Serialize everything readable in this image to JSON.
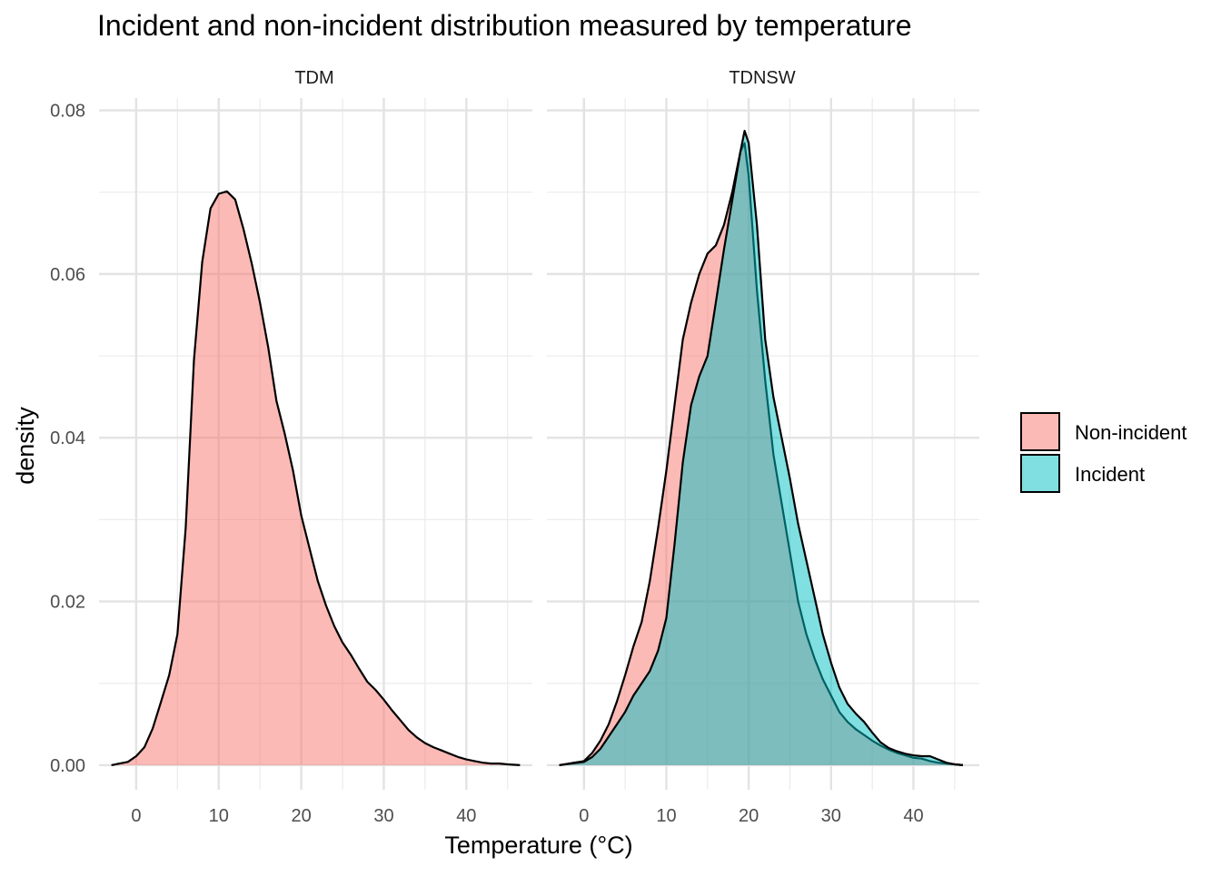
{
  "chart_data": {
    "type": "area",
    "title": "Incident and non-incident distribution measured by temperature",
    "xlabel": "Temperature (°C)",
    "ylabel": "density",
    "xlim": [
      -4.5,
      48
    ],
    "ylim": [
      -0.003,
      0.0815
    ],
    "x_ticks": [
      0,
      10,
      20,
      30,
      40
    ],
    "x_tick_labels": [
      "0",
      "10",
      "20",
      "30",
      "40"
    ],
    "y_ticks": [
      0.0,
      0.02,
      0.04,
      0.06,
      0.08
    ],
    "y_tick_labels": [
      "0.00",
      "0.02",
      "0.04",
      "0.06",
      "0.08"
    ],
    "grid": true,
    "legend": {
      "placement": "right",
      "entries": [
        {
          "name": "Non-incident",
          "color": "#F8766D"
        },
        {
          "name": "Incident",
          "color": "#00BFC4"
        }
      ]
    },
    "panels": [
      {
        "label": "TDM",
        "series": [
          {
            "name": "Non-incident",
            "color": "#F8766D",
            "x": [
              -3,
              -1,
              0,
              1,
              2,
              3,
              4,
              5,
              6,
              7,
              8,
              9,
              10,
              11,
              12,
              13,
              14,
              15,
              16,
              17,
              18,
              19,
              20,
              21,
              22,
              23,
              24,
              25,
              26,
              27,
              28,
              29,
              30,
              31,
              32,
              33,
              34,
              35,
              36,
              37,
              38,
              39,
              40,
              41,
              42,
              43,
              44,
              45,
              46.5
            ],
            "y": [
              0.0,
              0.0004,
              0.0011,
              0.0022,
              0.0045,
              0.0077,
              0.011,
              0.016,
              0.029,
              0.0495,
              0.0615,
              0.068,
              0.0698,
              0.0701,
              0.0691,
              0.0655,
              0.0613,
              0.0565,
              0.051,
              0.0445,
              0.0405,
              0.036,
              0.0305,
              0.0265,
              0.0225,
              0.0195,
              0.017,
              0.015,
              0.0135,
              0.0118,
              0.0102,
              0.0092,
              0.008,
              0.0067,
              0.0055,
              0.0043,
              0.0034,
              0.0027,
              0.0022,
              0.0018,
              0.0014,
              0.001,
              0.0007,
              0.0005,
              0.0003,
              0.0002,
              0.0002,
              0.0001,
              0.0
            ]
          }
        ]
      },
      {
        "label": "TDNSW",
        "series": [
          {
            "name": "Non-incident",
            "color": "#F8766D",
            "x": [
              -3,
              0,
              1,
              2,
              3,
              4,
              5,
              6,
              7,
              8,
              9,
              10,
              11,
              12,
              13,
              14,
              15,
              16,
              17,
              18,
              19,
              19.5,
              20,
              21,
              22,
              23,
              24,
              25,
              26,
              27,
              28,
              29,
              30,
              31,
              32,
              33,
              34,
              35,
              36,
              37,
              38,
              39,
              40,
              41,
              42,
              43,
              44,
              45,
              46
            ],
            "y": [
              0.0,
              0.0005,
              0.0015,
              0.003,
              0.005,
              0.0078,
              0.011,
              0.0145,
              0.0175,
              0.0225,
              0.029,
              0.036,
              0.044,
              0.052,
              0.0565,
              0.06,
              0.0625,
              0.0635,
              0.066,
              0.07,
              0.075,
              0.076,
              0.072,
              0.058,
              0.047,
              0.038,
              0.032,
              0.026,
              0.02,
              0.016,
              0.013,
              0.0105,
              0.0085,
              0.0065,
              0.0053,
              0.0044,
              0.0037,
              0.003,
              0.0024,
              0.0019,
              0.0015,
              0.0012,
              0.0009,
              0.0008,
              0.0005,
              0.0003,
              0.0002,
              0.0001,
              0.0
            ]
          },
          {
            "name": "Incident",
            "color": "#00BFC4",
            "x": [
              -3,
              0,
              1,
              2,
              3,
              4,
              5,
              6,
              7,
              8,
              9,
              10,
              11,
              12,
              13,
              14,
              15,
              16,
              17,
              18,
              19,
              19.5,
              20,
              21,
              22,
              23,
              24,
              25,
              26,
              27,
              28,
              29,
              30,
              31,
              32,
              33,
              34,
              35,
              36,
              37,
              38,
              39,
              40,
              41,
              42,
              43,
              44,
              45,
              46
            ],
            "y": [
              0.0,
              0.0004,
              0.001,
              0.002,
              0.0035,
              0.005,
              0.0065,
              0.0085,
              0.01,
              0.0115,
              0.014,
              0.018,
              0.027,
              0.037,
              0.044,
              0.0475,
              0.05,
              0.0565,
              0.063,
              0.069,
              0.075,
              0.0775,
              0.076,
              0.066,
              0.052,
              0.045,
              0.04,
              0.035,
              0.0295,
              0.025,
              0.0205,
              0.016,
              0.0125,
              0.0095,
              0.0075,
              0.0063,
              0.0053,
              0.004,
              0.0028,
              0.0021,
              0.0017,
              0.0014,
              0.0012,
              0.0011,
              0.0011,
              0.0007,
              0.0003,
              0.0001,
              0.0
            ]
          }
        ]
      }
    ]
  }
}
